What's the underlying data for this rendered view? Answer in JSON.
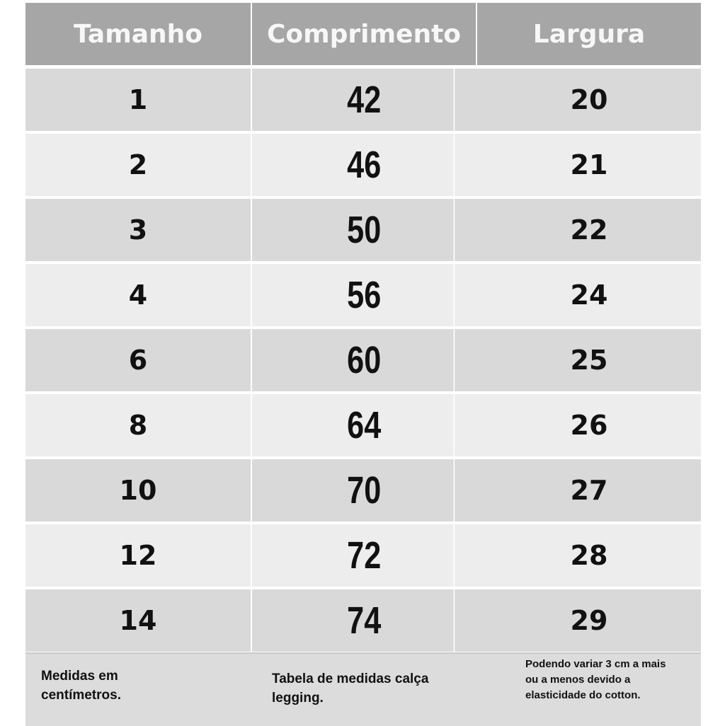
{
  "header": {
    "size": "Tamanho",
    "length": "Comprimento",
    "width": "Largura"
  },
  "rows": [
    {
      "size": "1",
      "length": "42",
      "width": "20"
    },
    {
      "size": "2",
      "length": "46",
      "width": "21"
    },
    {
      "size": "3",
      "length": "50",
      "width": "22"
    },
    {
      "size": "4",
      "length": "56",
      "width": "24"
    },
    {
      "size": "6",
      "length": "60",
      "width": "25"
    },
    {
      "size": "8",
      "length": "64",
      "width": "26"
    },
    {
      "size": "10",
      "length": "70",
      "width": "27"
    },
    {
      "size": "12",
      "length": "72",
      "width": "28"
    },
    {
      "size": "14",
      "length": "74",
      "width": "29"
    }
  ],
  "footer": {
    "units_note": "Medidas em centímetros.",
    "title_note": "Tabela de medidas calça legging.",
    "variation_note": "Podendo variar 3 cm a mais ou a menos devido a elasticidade do cotton."
  },
  "colors": {
    "header_bg": "#a6a6a6",
    "row_dark": "#d9d9d9",
    "row_light": "#ededed",
    "footer_bg": "#dcdcdc"
  }
}
